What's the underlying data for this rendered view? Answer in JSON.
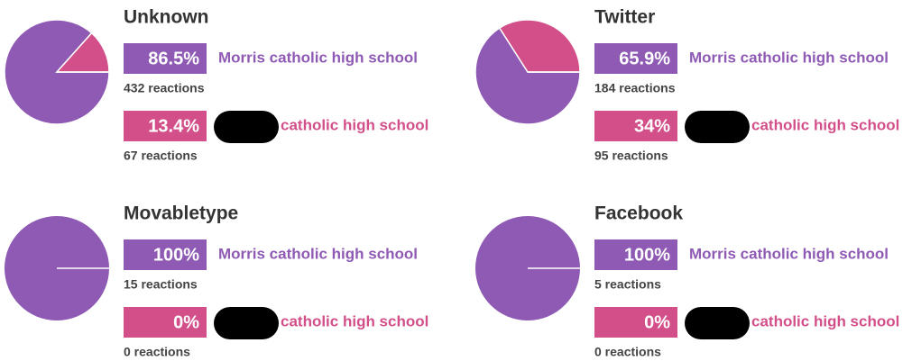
{
  "chart_data": [
    {
      "type": "pie",
      "title": "Unknown",
      "categories": [
        "Morris catholic high school",
        "catholic high school"
      ],
      "values": [
        86.5,
        13.4
      ],
      "value_labels": [
        "86.5%",
        "13.4%"
      ],
      "reactions": [
        "432 reactions",
        "67 reactions"
      ],
      "colors": [
        "#8e5ab4",
        "#d34f89"
      ]
    },
    {
      "type": "pie",
      "title": "Twitter",
      "categories": [
        "Morris catholic high school",
        "catholic high school"
      ],
      "values": [
        65.9,
        34
      ],
      "value_labels": [
        "65.9%",
        "34%"
      ],
      "reactions": [
        "184 reactions",
        "95 reactions"
      ],
      "colors": [
        "#8e5ab4",
        "#d34f89"
      ]
    },
    {
      "type": "pie",
      "title": "Movabletype",
      "categories": [
        "Morris catholic high school",
        "catholic high school"
      ],
      "values": [
        100,
        0
      ],
      "value_labels": [
        "100%",
        "0%"
      ],
      "reactions": [
        "15 reactions",
        "0 reactions"
      ],
      "colors": [
        "#8e5ab4",
        "#d34f89"
      ]
    },
    {
      "type": "pie",
      "title": "Facebook",
      "categories": [
        "Morris catholic high school",
        "catholic high school"
      ],
      "values": [
        100,
        0
      ],
      "value_labels": [
        "100%",
        "0%"
      ],
      "reactions": [
        "5 reactions",
        "0 reactions"
      ],
      "colors": [
        "#8e5ab4",
        "#d34f89"
      ]
    }
  ]
}
